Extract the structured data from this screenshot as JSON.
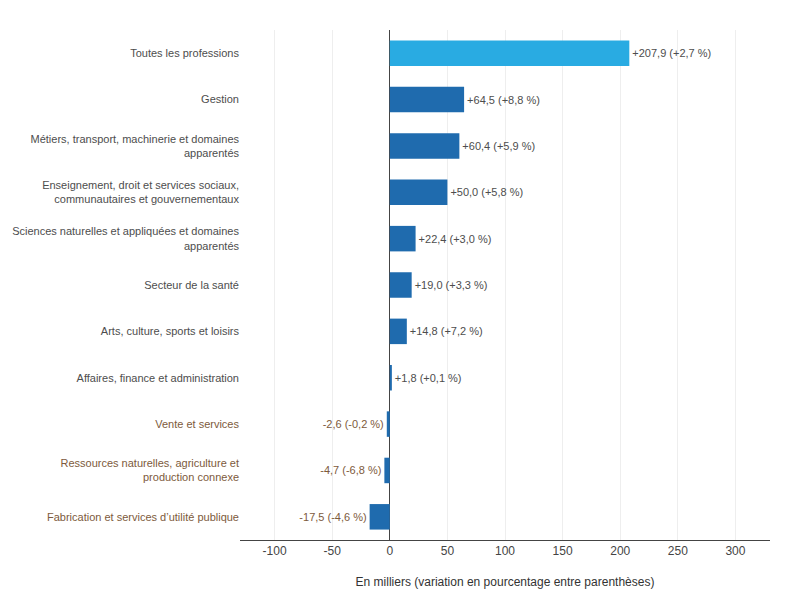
{
  "chart_data": {
    "type": "bar",
    "orientation": "horizontal",
    "categories": [
      "Toutes les professions",
      "Gestion",
      "Métiers, transport, machinerie et domaines\napparentés",
      "Enseignement, droit et services sociaux,\ncommunautaires et gouvernementaux",
      "Sciences naturelles et appliquées et domaines\napparentés",
      "Secteur de la santé",
      "Arts, culture, sports et loisirs",
      "Affaires, finance et administration",
      "Vente et services",
      "Ressources naturelles, agriculture et\nproduction connexe",
      "Fabrication et services d’utilité publique"
    ],
    "values": [
      207.9,
      64.5,
      60.4,
      50.0,
      22.4,
      19.0,
      14.8,
      1.8,
      -2.6,
      -4.7,
      -17.5
    ],
    "value_labels": [
      "+207,9 (+2,7 %)",
      "+64,5 (+8,8 %)",
      "+60,4 (+5,9 %)",
      "+50,0 (+5,8 %)",
      "+22,4 (+3,0 %)",
      "+19,0 (+3,3 %)",
      "+14,8 (+7,2 %)",
      "+1,8 (+0,1 %)",
      "-2,6 (-0,2 %)",
      "-4,7 (-6,8 %)",
      "-17,5 (-4,6 %)"
    ],
    "data_labels": true,
    "colors": [
      "#29ABE2",
      "#1F6BAE",
      "#1F6BAE",
      "#1F6BAE",
      "#1F6BAE",
      "#1F6BAE",
      "#1F6BAE",
      "#1F6BAE",
      "#1F6BAE",
      "#1F6BAE",
      "#1F6BAE"
    ],
    "x_label": "En milliers (variation en pourcentage entre parenthèses)",
    "xlim": [
      -130,
      330
    ],
    "xticks": [
      -100,
      -50,
      0,
      50,
      100,
      150,
      200,
      250,
      300
    ],
    "grid": true
  }
}
